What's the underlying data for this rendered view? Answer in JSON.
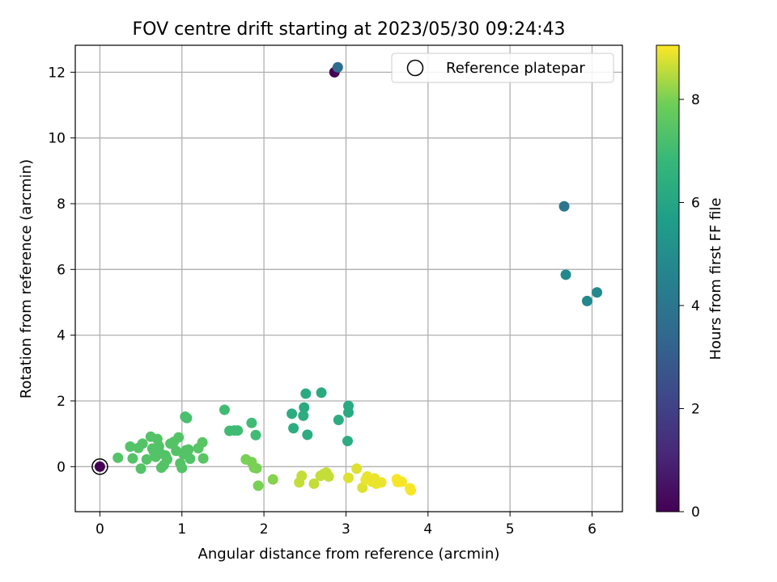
{
  "chart_data": {
    "type": "scatter",
    "title": "FOV centre drift starting at 2023/05/30 09:24:43",
    "xlabel": "Angular distance from reference (arcmin)",
    "ylabel": "Rotation from reference (arcmin)",
    "xlim": [
      -0.3,
      6.37
    ],
    "ylim": [
      -1.37,
      12.82
    ],
    "x_ticks": [
      0,
      1,
      2,
      3,
      4,
      5,
      6
    ],
    "y_ticks": [
      0,
      2,
      4,
      6,
      8,
      10,
      12
    ],
    "grid": true,
    "legend": {
      "placement": "top-right",
      "entries": [
        "Reference platepar"
      ]
    },
    "reference_point": {
      "x": 0,
      "y": 0
    },
    "colorbar": {
      "label": "Hours from first FF file",
      "range": [
        0,
        9.05
      ],
      "ticks": [
        0,
        2,
        4,
        6,
        8
      ],
      "colormap": "viridis"
    },
    "points": [
      {
        "x": 2.86,
        "y": 12.0,
        "c": 0.0
      },
      {
        "x": 2.9,
        "y": 12.15,
        "c": 3.6
      },
      {
        "x": 5.66,
        "y": 7.92,
        "c": 4.0
      },
      {
        "x": 5.68,
        "y": 5.84,
        "c": 4.8
      },
      {
        "x": 5.94,
        "y": 5.04,
        "c": 4.8
      },
      {
        "x": 6.06,
        "y": 5.3,
        "c": 4.8
      },
      {
        "x": 0.0,
        "y": 0.0,
        "c": 0.0
      },
      {
        "x": 2.7,
        "y": 2.25,
        "c": 6.2
      },
      {
        "x": 2.51,
        "y": 2.22,
        "c": 6.2
      },
      {
        "x": 2.49,
        "y": 1.8,
        "c": 6.2
      },
      {
        "x": 3.03,
        "y": 1.85,
        "c": 6.2
      },
      {
        "x": 3.03,
        "y": 1.65,
        "c": 6.2
      },
      {
        "x": 2.34,
        "y": 1.61,
        "c": 6.3
      },
      {
        "x": 2.48,
        "y": 1.55,
        "c": 6.3
      },
      {
        "x": 2.91,
        "y": 1.42,
        "c": 6.3
      },
      {
        "x": 2.36,
        "y": 1.17,
        "c": 6.3
      },
      {
        "x": 2.53,
        "y": 0.97,
        "c": 6.3
      },
      {
        "x": 3.02,
        "y": 0.78,
        "c": 6.3
      },
      {
        "x": 1.52,
        "y": 1.73,
        "c": 7.0
      },
      {
        "x": 1.58,
        "y": 1.09,
        "c": 7.0
      },
      {
        "x": 1.64,
        "y": 1.1,
        "c": 7.0
      },
      {
        "x": 1.68,
        "y": 1.1,
        "c": 7.0
      },
      {
        "x": 1.85,
        "y": 1.33,
        "c": 7.0
      },
      {
        "x": 1.9,
        "y": 0.96,
        "c": 7.0
      },
      {
        "x": 1.04,
        "y": 1.52,
        "c": 7.2
      },
      {
        "x": 1.06,
        "y": 1.48,
        "c": 7.2
      },
      {
        "x": 0.22,
        "y": 0.27,
        "c": 7.4
      },
      {
        "x": 0.37,
        "y": 0.61,
        "c": 7.4
      },
      {
        "x": 0.4,
        "y": 0.25,
        "c": 7.4
      },
      {
        "x": 0.47,
        "y": 0.57,
        "c": 7.4
      },
      {
        "x": 0.5,
        "y": -0.06,
        "c": 7.4
      },
      {
        "x": 0.52,
        "y": 0.7,
        "c": 7.4
      },
      {
        "x": 0.57,
        "y": 0.22,
        "c": 7.4
      },
      {
        "x": 0.62,
        "y": 0.91,
        "c": 7.4
      },
      {
        "x": 0.64,
        "y": 0.55,
        "c": 7.4
      },
      {
        "x": 0.66,
        "y": 0.45,
        "c": 7.4
      },
      {
        "x": 0.68,
        "y": 0.3,
        "c": 7.4
      },
      {
        "x": 0.7,
        "y": 0.84,
        "c": 7.4
      },
      {
        "x": 0.72,
        "y": 0.62,
        "c": 7.4
      },
      {
        "x": 0.74,
        "y": 0.4,
        "c": 7.4
      },
      {
        "x": 0.75,
        "y": -0.03,
        "c": 7.4
      },
      {
        "x": 0.78,
        "y": 0.05,
        "c": 7.4
      },
      {
        "x": 0.8,
        "y": 0.34,
        "c": 7.4
      },
      {
        "x": 0.82,
        "y": 0.22,
        "c": 7.4
      },
      {
        "x": 0.86,
        "y": 0.7,
        "c": 7.4
      },
      {
        "x": 0.9,
        "y": 0.75,
        "c": 7.4
      },
      {
        "x": 0.93,
        "y": 0.48,
        "c": 7.4
      },
      {
        "x": 0.96,
        "y": 0.89,
        "c": 7.4
      },
      {
        "x": 0.98,
        "y": 0.1,
        "c": 7.4
      },
      {
        "x": 1.0,
        "y": -0.04,
        "c": 7.4
      },
      {
        "x": 1.02,
        "y": 0.38,
        "c": 7.4
      },
      {
        "x": 1.05,
        "y": 0.5,
        "c": 7.4
      },
      {
        "x": 1.08,
        "y": 0.52,
        "c": 7.4
      },
      {
        "x": 1.1,
        "y": 0.24,
        "c": 7.4
      },
      {
        "x": 1.2,
        "y": 0.56,
        "c": 7.5
      },
      {
        "x": 1.25,
        "y": 0.74,
        "c": 7.5
      },
      {
        "x": 1.26,
        "y": 0.25,
        "c": 7.5
      },
      {
        "x": 1.78,
        "y": 0.22,
        "c": 8.0
      },
      {
        "x": 1.85,
        "y": 0.14,
        "c": 8.0
      },
      {
        "x": 1.88,
        "y": -0.03,
        "c": 8.0
      },
      {
        "x": 1.91,
        "y": -0.05,
        "c": 8.0
      },
      {
        "x": 1.93,
        "y": -0.58,
        "c": 8.0
      },
      {
        "x": 2.11,
        "y": -0.39,
        "c": 8.1
      },
      {
        "x": 2.43,
        "y": -0.48,
        "c": 8.6
      },
      {
        "x": 2.46,
        "y": -0.28,
        "c": 8.6
      },
      {
        "x": 2.61,
        "y": -0.52,
        "c": 8.6
      },
      {
        "x": 2.69,
        "y": -0.28,
        "c": 8.6
      },
      {
        "x": 2.73,
        "y": -0.22,
        "c": 8.6
      },
      {
        "x": 2.76,
        "y": -0.18,
        "c": 8.6
      },
      {
        "x": 2.79,
        "y": -0.3,
        "c": 8.6
      },
      {
        "x": 3.03,
        "y": -0.34,
        "c": 8.8
      },
      {
        "x": 3.13,
        "y": -0.06,
        "c": 8.8
      },
      {
        "x": 3.2,
        "y": -0.64,
        "c": 8.8
      },
      {
        "x": 3.24,
        "y": -0.4,
        "c": 8.9
      },
      {
        "x": 3.26,
        "y": -0.3,
        "c": 8.9
      },
      {
        "x": 3.32,
        "y": -0.46,
        "c": 8.9
      },
      {
        "x": 3.35,
        "y": -0.36,
        "c": 8.9
      },
      {
        "x": 3.37,
        "y": -0.52,
        "c": 8.9
      },
      {
        "x": 3.43,
        "y": -0.48,
        "c": 8.9
      },
      {
        "x": 3.62,
        "y": -0.38,
        "c": 9.0
      },
      {
        "x": 3.63,
        "y": -0.47,
        "c": 9.0
      },
      {
        "x": 3.68,
        "y": -0.46,
        "c": 9.0
      },
      {
        "x": 3.78,
        "y": -0.66,
        "c": 9.0
      },
      {
        "x": 3.79,
        "y": -0.72,
        "c": 9.0
      }
    ]
  }
}
